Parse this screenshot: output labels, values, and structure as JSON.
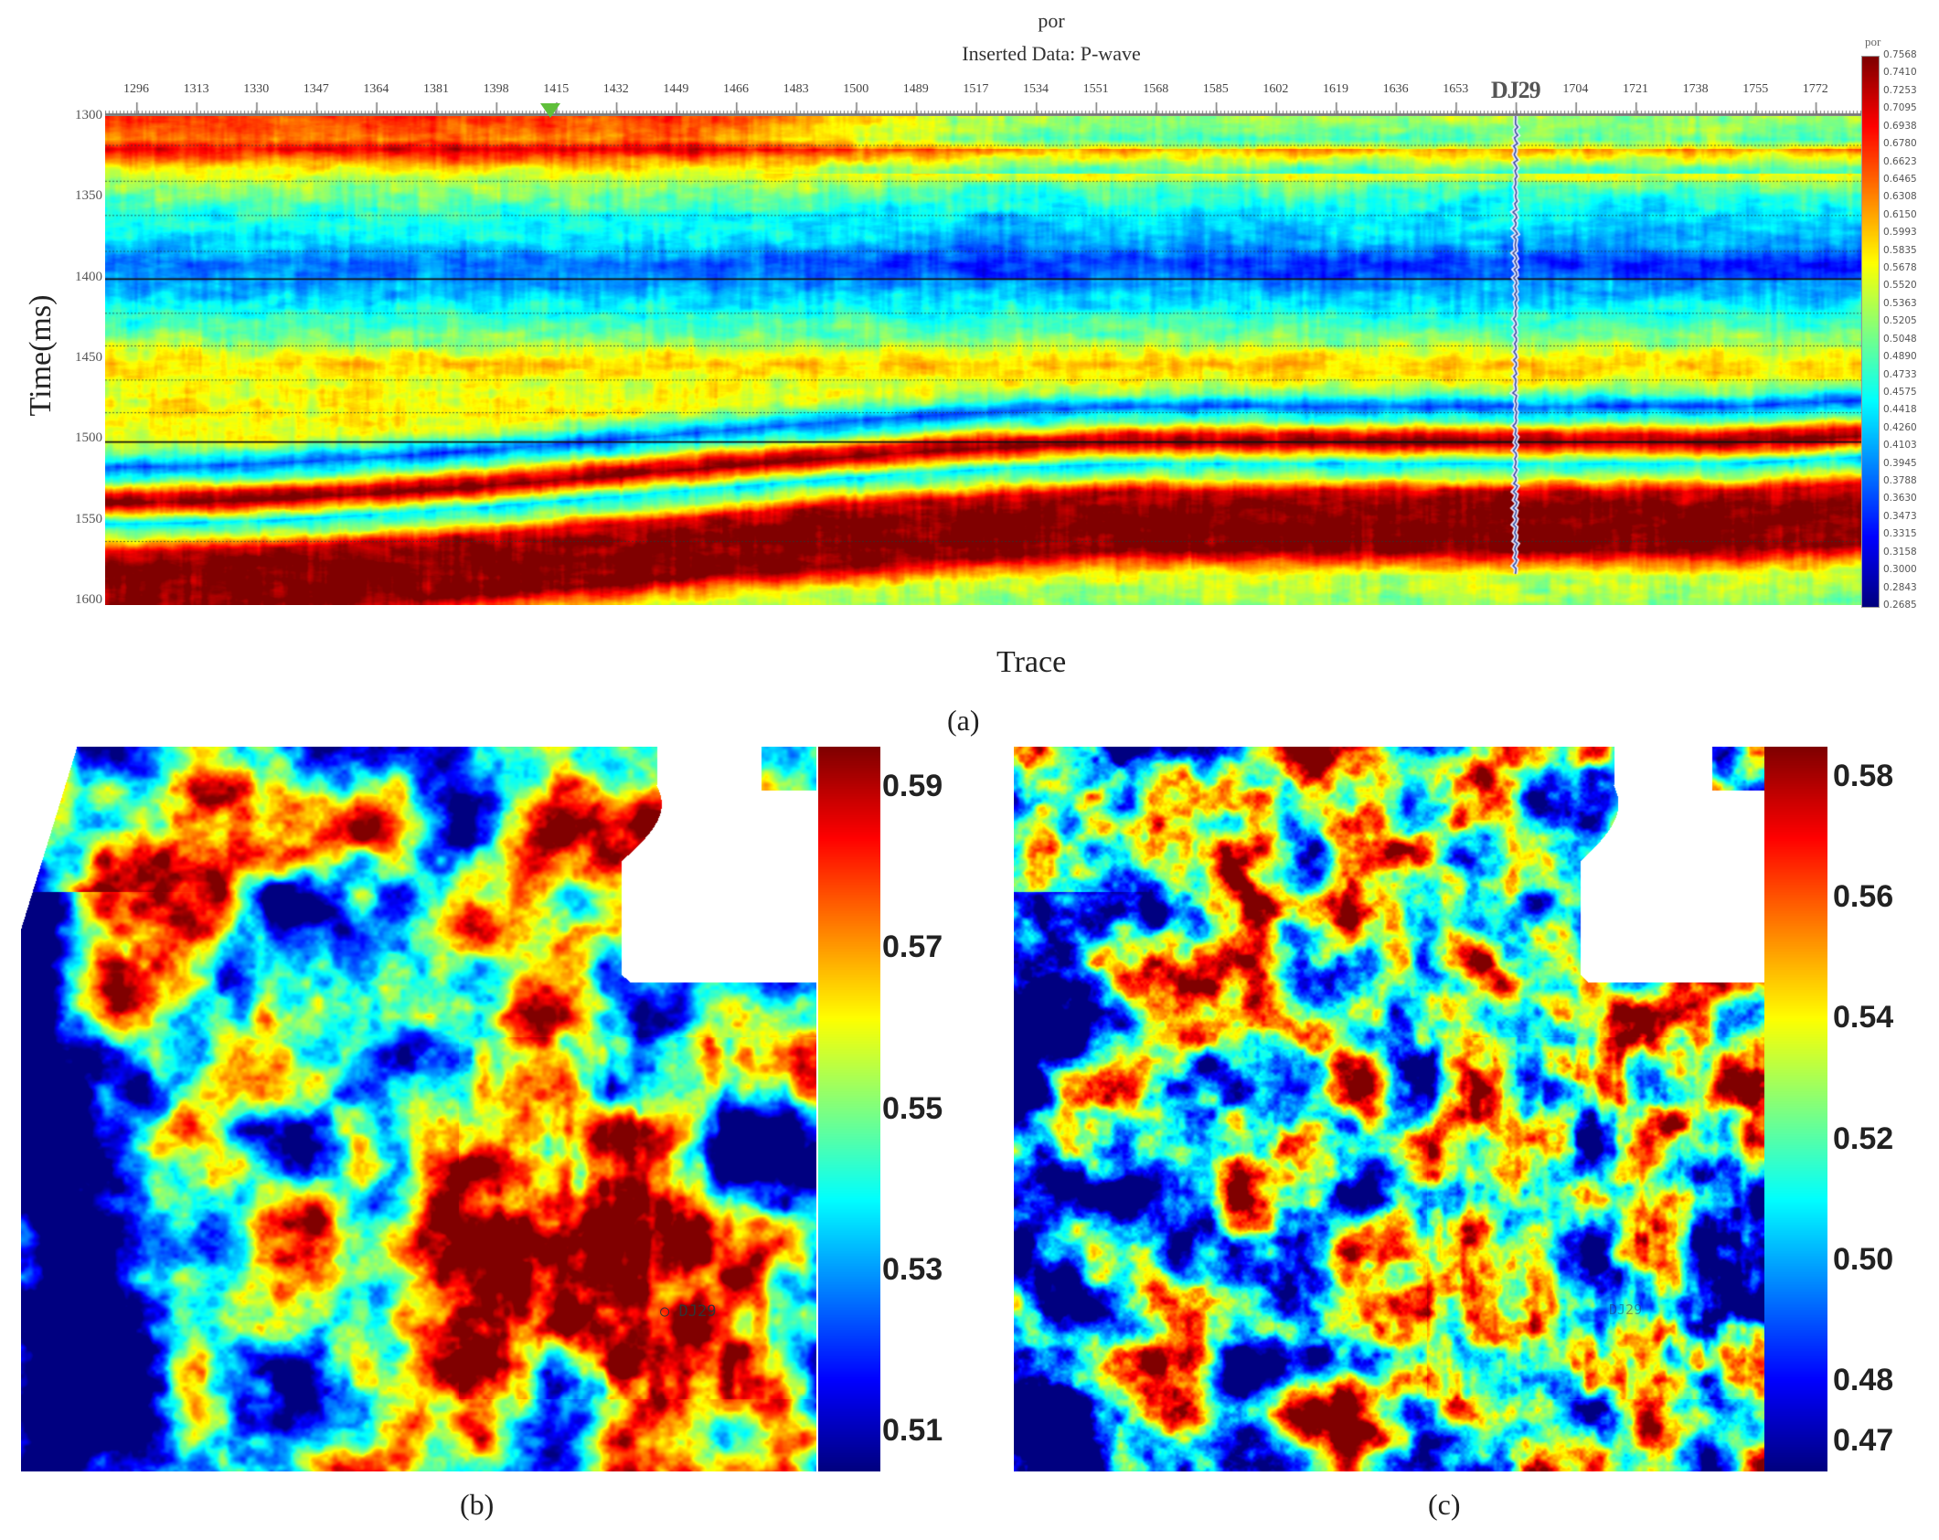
{
  "figure": {
    "panel_labels": [
      "(a)",
      "(b)",
      "(c)"
    ]
  },
  "chart_data": [
    {
      "panel": "(a)",
      "type": "heatmap",
      "title": "por",
      "subtitle": "Inserted Data: P-wave",
      "xlabel": "Trace",
      "ylabel": "Time(ms)",
      "x_tick_labels": [
        "1296",
        "1313",
        "1330",
        "1347",
        "1364",
        "1381",
        "1398",
        "1415",
        "1432",
        "1449",
        "1466",
        "1483",
        "1500",
        "1489",
        "1517",
        "1534",
        "1551",
        "1568",
        "1585",
        "1602",
        "1619",
        "1636",
        "1653",
        "DJ29",
        "1704",
        "1721",
        "1738",
        "1755",
        "1772"
      ],
      "well_name": "DJ29",
      "y_tick_labels": [
        "1300",
        "1350",
        "1400",
        "1450",
        "1500",
        "1550",
        "1600"
      ],
      "ylim": [
        1300,
        1600
      ],
      "y_inverted": true,
      "horizons_solid_ms": [
        1400,
        1500
      ],
      "colorbar": {
        "title": "por",
        "colormap": "jet",
        "range": [
          0.2685,
          0.7568
        ],
        "tick_labels": [
          "0.7568",
          "0.7410",
          "0.7253",
          "0.7095",
          "0.6938",
          "0.6780",
          "0.6623",
          "0.6465",
          "0.6308",
          "0.6150",
          "0.5993",
          "0.5835",
          "0.5678",
          "0.5520",
          "0.5363",
          "0.5205",
          "0.5048",
          "0.4890",
          "0.4733",
          "0.4575",
          "0.4418",
          "0.4260",
          "0.4103",
          "0.3945",
          "0.3788",
          "0.3630",
          "0.3473",
          "0.3315",
          "0.3158",
          "0.3000",
          "0.2843",
          "0.2685"
        ]
      },
      "marker_color": "#5fbf3a"
    },
    {
      "panel": "(b)",
      "type": "heatmap",
      "well_label": "DJ29",
      "colorbar": {
        "colormap": "jet",
        "range": [
          0.505,
          0.595
        ],
        "tick_labels": [
          "0.59",
          "0.57",
          "0.55",
          "0.53",
          "0.51"
        ],
        "tick_values": [
          0.59,
          0.57,
          0.55,
          0.53,
          0.51
        ]
      }
    },
    {
      "panel": "(c)",
      "type": "heatmap",
      "well_label": "DJ29",
      "colorbar": {
        "colormap": "jet",
        "range": [
          0.465,
          0.585
        ],
        "tick_labels": [
          "0.58",
          "0.56",
          "0.54",
          "0.52",
          "0.50",
          "0.48",
          "0.47"
        ],
        "tick_values": [
          0.58,
          0.56,
          0.54,
          0.52,
          0.5,
          0.48,
          0.47
        ]
      }
    }
  ]
}
